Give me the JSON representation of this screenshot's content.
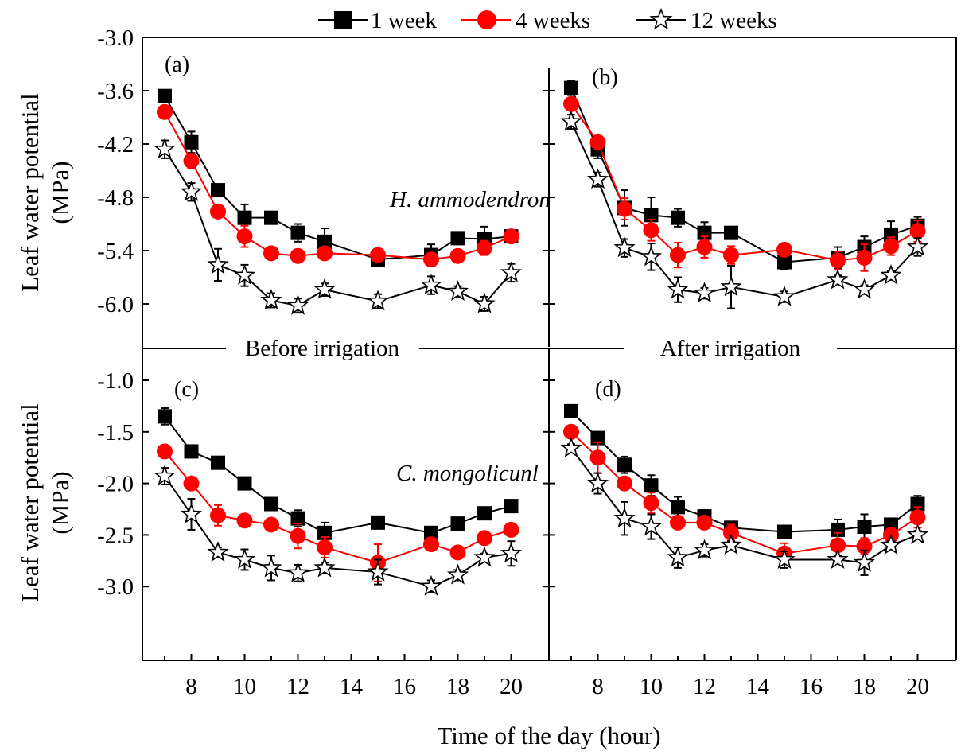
{
  "legend": [
    {
      "label": "1 week",
      "color": "#000000",
      "marker": "square"
    },
    {
      "label": "4 weeks",
      "color": "#ff0000",
      "marker": "circle"
    },
    {
      "label": "12 weeks",
      "color": "#000000",
      "marker": "star"
    }
  ],
  "ylabel_line1": "Leaf water potential",
  "ylabel_line2": "(MPa)",
  "xlabel": "Time of the day (hour)",
  "section_labels": {
    "before": "Before irrigation",
    "after": "After irrigation"
  },
  "species": {
    "top": "H. ammodendron",
    "bottom": "C. mongolicunl"
  },
  "chart_data": [
    {
      "type": "line",
      "panel": "(a)",
      "group": "Before irrigation",
      "species": "H. ammodendron",
      "x": [
        7,
        8,
        9,
        10,
        11,
        12,
        13,
        15,
        17,
        18,
        19,
        20
      ],
      "xlim": [
        6,
        21
      ],
      "ylim": [
        -6.5,
        -3.0
      ],
      "yticks": [
        -3.0,
        -3.6,
        -4.2,
        -4.8,
        -5.4,
        -6.0
      ],
      "xticks": [
        8,
        10,
        12,
        14,
        16,
        18,
        20
      ],
      "series": [
        {
          "name": "1 week",
          "values": [
            -3.66,
            -4.18,
            -4.72,
            -5.03,
            -5.03,
            -5.2,
            -5.3,
            -5.5,
            -5.45,
            -5.26,
            -5.27,
            -5.24
          ],
          "err": [
            0.06,
            0.12,
            0.05,
            0.15,
            0.04,
            0.1,
            0.15,
            0.05,
            0.12,
            0.07,
            0.14,
            0.06
          ]
        },
        {
          "name": "4 weeks",
          "values": [
            -3.84,
            -4.39,
            -4.96,
            -5.24,
            -5.43,
            -5.46,
            -5.43,
            -5.45,
            -5.5,
            -5.46,
            -5.37,
            -5.24
          ],
          "err": [
            0.04,
            0.08,
            0.06,
            0.12,
            0.04,
            0.04,
            0.04,
            0.04,
            0.04,
            0.05,
            0.08,
            0.06
          ]
        },
        {
          "name": "12 weeks",
          "values": [
            -4.26,
            -4.74,
            -5.56,
            -5.68,
            -5.96,
            -6.02,
            -5.84,
            -5.97,
            -5.79,
            -5.86,
            -6.0,
            -5.65
          ],
          "err": [
            0.1,
            0.1,
            0.18,
            0.12,
            0.08,
            0.08,
            0.07,
            0.08,
            0.1,
            0.06,
            0.08,
            0.1
          ]
        }
      ]
    },
    {
      "type": "line",
      "panel": "(b)",
      "group": "After irrigation",
      "species": "H. ammodendron",
      "x": [
        7,
        8,
        9,
        10,
        11,
        12,
        13,
        15,
        17,
        18,
        19,
        20
      ],
      "xlim": [
        6,
        21
      ],
      "ylim": [
        -6.5,
        -3.0
      ],
      "yticks": [
        -3.0,
        -3.6,
        -4.2,
        -4.8,
        -5.4,
        -6.0
      ],
      "xticks": [
        8,
        10,
        12,
        14,
        16,
        18,
        20
      ],
      "series": [
        {
          "name": "1 week",
          "values": [
            -3.57,
            -4.26,
            -4.92,
            -5.0,
            -5.03,
            -5.2,
            -5.2,
            -5.53,
            -5.48,
            -5.36,
            -5.22,
            -5.12
          ],
          "err": [
            0.08,
            0.1,
            0.2,
            0.2,
            0.1,
            0.12,
            0.06,
            0.08,
            0.12,
            0.12,
            0.15,
            0.1
          ]
        },
        {
          "name": "4 weeks",
          "values": [
            -3.75,
            -4.18,
            -4.93,
            -5.17,
            -5.45,
            -5.36,
            -5.45,
            -5.39,
            -5.51,
            -5.48,
            -5.35,
            -5.18
          ],
          "err": [
            0.05,
            0.05,
            0.12,
            0.12,
            0.14,
            0.12,
            0.1,
            0.06,
            0.1,
            0.15,
            0.1,
            0.12
          ]
        },
        {
          "name": "12 weeks",
          "values": [
            -3.95,
            -4.6,
            -5.37,
            -5.47,
            -5.84,
            -5.88,
            -5.81,
            -5.92,
            -5.73,
            -5.84,
            -5.68,
            -5.36
          ],
          "err": [
            0.08,
            0.08,
            0.1,
            0.15,
            0.14,
            0.06,
            0.24,
            0.06,
            0.05,
            0.05,
            0.05,
            0.1
          ]
        }
      ]
    },
    {
      "type": "line",
      "panel": "(c)",
      "group": "Before irrigation",
      "species": "C. mongolicunl",
      "x": [
        7,
        8,
        9,
        10,
        11,
        12,
        13,
        15,
        17,
        18,
        19,
        20
      ],
      "xlim": [
        6,
        21
      ],
      "ylim": [
        -3.2,
        -0.8
      ],
      "yticks": [
        -1.0,
        -1.5,
        -2.0,
        -2.5,
        -3.0
      ],
      "xticks": [
        8,
        10,
        12,
        14,
        16,
        18,
        20
      ],
      "series": [
        {
          "name": "1 week",
          "values": [
            -1.35,
            -1.69,
            -1.8,
            -2.0,
            -2.2,
            -2.34,
            -2.48,
            -2.38,
            -2.48,
            -2.39,
            -2.29,
            -2.22
          ],
          "err": [
            0.08,
            0.06,
            0.04,
            0.04,
            0.05,
            0.08,
            0.1,
            0.03,
            0.03,
            0.03,
            0.03,
            0.03
          ]
        },
        {
          "name": "4 weeks",
          "values": [
            -1.69,
            -2.0,
            -2.31,
            -2.36,
            -2.4,
            -2.51,
            -2.62,
            -2.77,
            -2.59,
            -2.67,
            -2.53,
            -2.45
          ],
          "err": [
            0.03,
            0.06,
            0.1,
            0.06,
            0.03,
            0.12,
            0.1,
            0.18,
            0.06,
            0.03,
            0.04,
            0.03
          ]
        },
        {
          "name": "12 weeks",
          "values": [
            -1.93,
            -2.3,
            -2.67,
            -2.74,
            -2.82,
            -2.87,
            -2.82,
            -2.86,
            -3.0,
            -2.89,
            -2.72,
            -2.68
          ],
          "err": [
            0.08,
            0.15,
            0.05,
            0.1,
            0.12,
            0.08,
            0.05,
            0.12,
            0.06,
            0.05,
            0.04,
            0.12
          ]
        }
      ]
    },
    {
      "type": "line",
      "panel": "(d)",
      "group": "After irrigation",
      "species": "C. mongolicunl",
      "x": [
        7,
        8,
        9,
        10,
        11,
        12,
        13,
        15,
        17,
        18,
        19,
        20
      ],
      "xlim": [
        6,
        21
      ],
      "ylim": [
        -3.2,
        -0.8
      ],
      "yticks": [
        -1.0,
        -1.5,
        -2.0,
        -2.5,
        -3.0
      ],
      "xticks": [
        8,
        10,
        12,
        14,
        16,
        18,
        20
      ],
      "series": [
        {
          "name": "1 week",
          "values": [
            -1.3,
            -1.56,
            -1.82,
            -2.02,
            -2.23,
            -2.32,
            -2.43,
            -2.47,
            -2.45,
            -2.42,
            -2.4,
            -2.2
          ],
          "err": [
            0.04,
            0.05,
            0.08,
            0.1,
            0.1,
            0.06,
            0.06,
            0.03,
            0.1,
            0.12,
            0.06,
            0.08
          ]
        },
        {
          "name": "4 weeks",
          "values": [
            -1.5,
            -1.75,
            -2.0,
            -2.19,
            -2.38,
            -2.38,
            -2.48,
            -2.68,
            -2.6,
            -2.61,
            -2.5,
            -2.33
          ],
          "err": [
            0.03,
            0.15,
            0.04,
            0.1,
            0.03,
            0.05,
            0.08,
            0.1,
            0.12,
            0.08,
            0.06,
            0.1
          ]
        },
        {
          "name": "12 weeks",
          "values": [
            -1.66,
            -2.0,
            -2.34,
            -2.42,
            -2.72,
            -2.65,
            -2.6,
            -2.74,
            -2.74,
            -2.77,
            -2.6,
            -2.5
          ],
          "err": [
            0.04,
            0.1,
            0.16,
            0.12,
            0.1,
            0.06,
            0.04,
            0.08,
            0.04,
            0.12,
            0.04,
            0.04
          ]
        }
      ]
    }
  ]
}
